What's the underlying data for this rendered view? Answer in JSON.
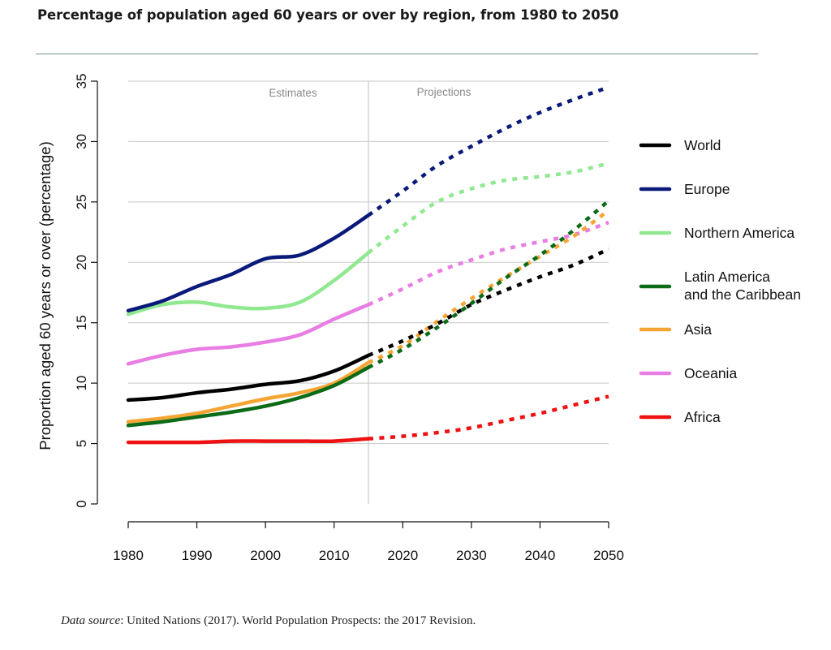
{
  "page": {
    "title": "Percentage of population aged 60 years or over by region, from 1980 to 2050",
    "source_lead": "Data source",
    "source_text": ": United Nations (2017). World Population Prospects: the 2017 Revision."
  },
  "chart_data": {
    "type": "line",
    "title": "Percentage of population aged 60 years or over by region, from 1980 to 2050",
    "xlabel": "",
    "ylabel": "Proportion aged 60 years or over (percentage)",
    "xlim": [
      1980,
      2050
    ],
    "ylim": [
      0,
      35
    ],
    "x_ticks": [
      1980,
      1990,
      2000,
      2010,
      2020,
      2030,
      2040,
      2050
    ],
    "y_ticks": [
      0,
      5,
      10,
      15,
      20,
      25,
      30,
      35
    ],
    "grid": "horizontal",
    "legend_position": "right",
    "periods": {
      "divider_year": 2015,
      "estimates_label": "Estimates",
      "projections_label": "Projections"
    },
    "x": [
      1980,
      1985,
      1990,
      1995,
      2000,
      2005,
      2010,
      2015,
      2020,
      2025,
      2030,
      2035,
      2040,
      2045,
      2050
    ],
    "series": [
      {
        "name": "World",
        "color": "#000000",
        "values": [
          8.6,
          8.8,
          9.2,
          9.5,
          9.9,
          10.2,
          11.0,
          12.3,
          13.5,
          14.9,
          16.5,
          17.7,
          18.8,
          19.8,
          21.1
        ]
      },
      {
        "name": "Europe",
        "color": "#0a1a7a",
        "values": [
          16.0,
          16.8,
          18.0,
          19.0,
          20.3,
          20.6,
          22.0,
          23.9,
          25.9,
          28.0,
          29.6,
          31.1,
          32.4,
          33.5,
          34.5
        ]
      },
      {
        "name": "Northern America",
        "color": "#90e890",
        "values": [
          15.7,
          16.5,
          16.7,
          16.3,
          16.2,
          16.7,
          18.5,
          20.8,
          23.0,
          25.0,
          26.1,
          26.8,
          27.1,
          27.5,
          28.2
        ]
      },
      {
        "name": "Latin America\nand the Caribbean",
        "color": "#0b6b17",
        "values": [
          6.5,
          6.8,
          7.2,
          7.6,
          8.1,
          8.8,
          9.8,
          11.3,
          12.8,
          14.6,
          16.6,
          18.7,
          20.6,
          22.7,
          25.1
        ]
      },
      {
        "name": "Asia",
        "color": "#f5a534",
        "values": [
          6.8,
          7.1,
          7.5,
          8.1,
          8.7,
          9.2,
          10.0,
          11.7,
          13.1,
          15.1,
          17.0,
          18.8,
          20.5,
          22.2,
          24.3
        ]
      },
      {
        "name": "Oceania",
        "color": "#e87de3",
        "values": [
          11.6,
          12.3,
          12.8,
          13.0,
          13.4,
          14.0,
          15.3,
          16.5,
          17.8,
          19.2,
          20.2,
          21.1,
          21.7,
          22.3,
          23.3
        ]
      },
      {
        "name": "Africa",
        "color": "#ee1111",
        "values": [
          5.1,
          5.1,
          5.1,
          5.2,
          5.2,
          5.2,
          5.2,
          5.4,
          5.6,
          5.9,
          6.3,
          6.9,
          7.5,
          8.2,
          8.9
        ]
      }
    ]
  }
}
